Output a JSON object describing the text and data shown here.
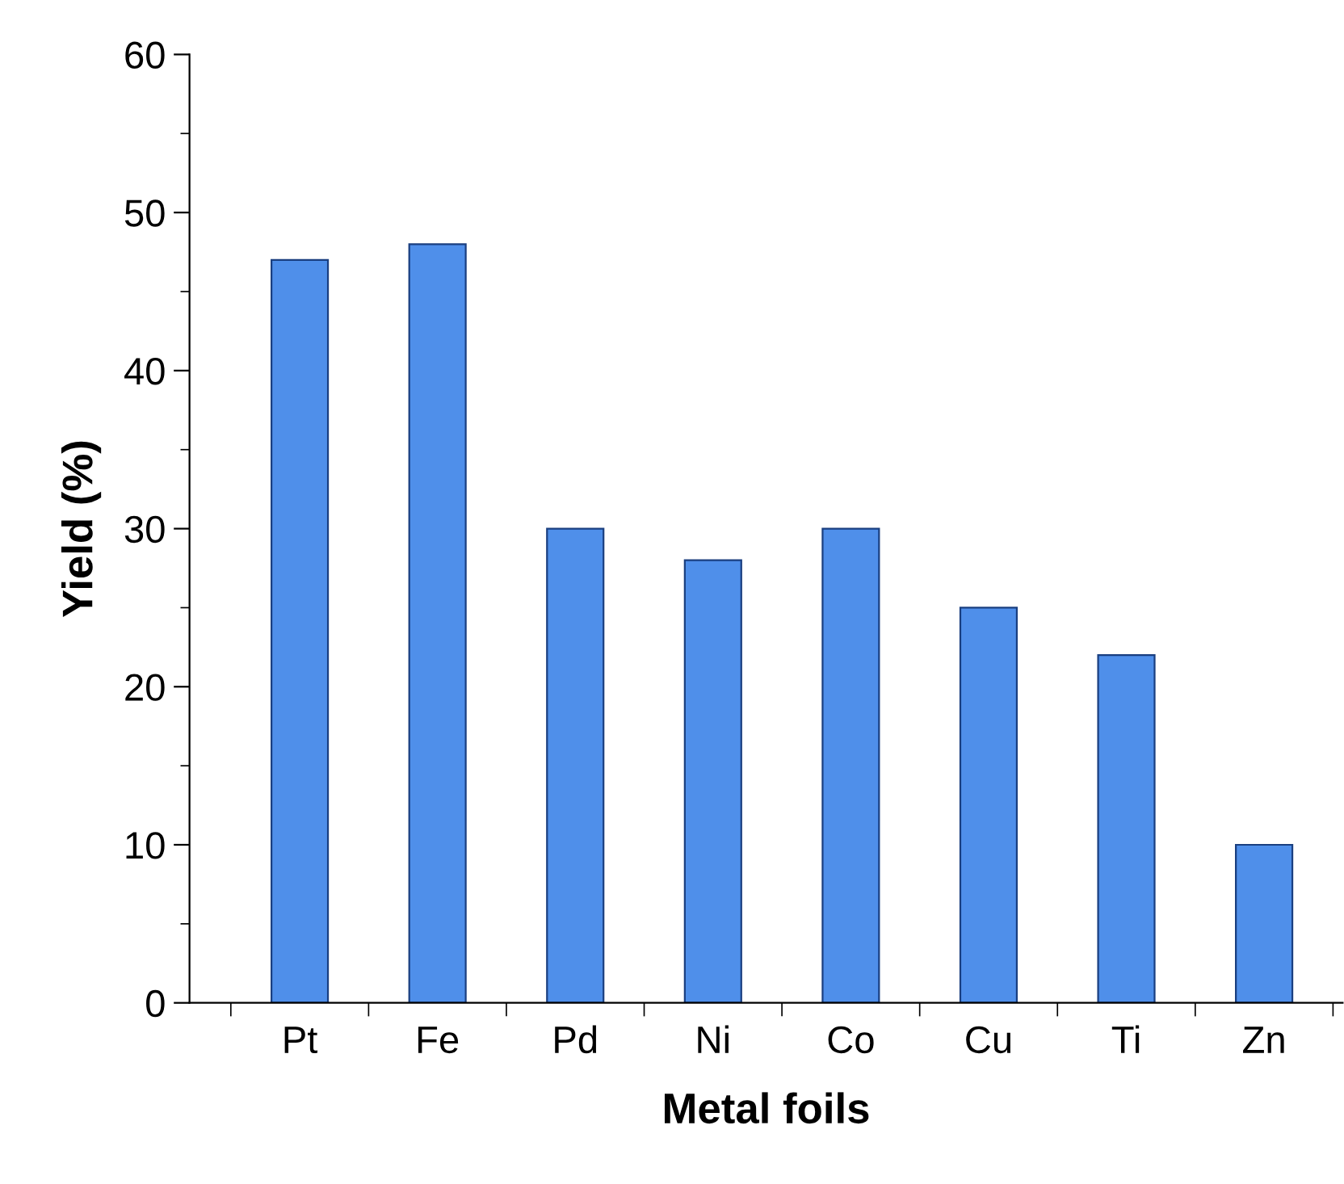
{
  "chart_data": {
    "type": "bar",
    "xlabel": "Metal foils",
    "ylabel": "Yield (%)",
    "categories": [
      "Pt",
      "Fe",
      "Pd",
      "Ni",
      "Co",
      "Cu",
      "Ti",
      "Zn"
    ],
    "values": [
      47,
      48,
      30,
      28,
      30,
      25,
      22,
      10
    ],
    "color": "#4f8fea",
    "ylim": [
      0,
      60
    ],
    "yticks": [
      0,
      10,
      20,
      30,
      40,
      50,
      60
    ],
    "grid": false,
    "legend": false
  }
}
